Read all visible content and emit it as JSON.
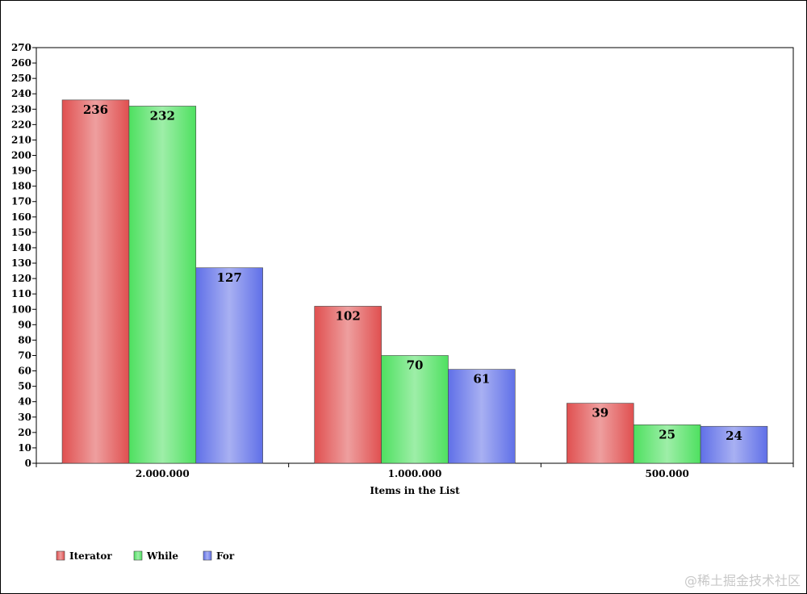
{
  "chart_data": {
    "type": "bar",
    "title": "",
    "xlabel": "Items in the List",
    "ylabel": "",
    "categories": [
      "2.000.000",
      "1.000.000",
      "500.000"
    ],
    "series": [
      {
        "name": "Iterator",
        "color": "#e05050",
        "values": [
          236,
          102,
          39
        ]
      },
      {
        "name": "While",
        "color": "#4ee060",
        "values": [
          232,
          70,
          25
        ]
      },
      {
        "name": "For",
        "color": "#6070e8",
        "values": [
          127,
          61,
          24
        ]
      }
    ],
    "ylim": [
      0,
      270
    ],
    "ytick_step": 10,
    "grid": false,
    "legend_position": "bottom-left"
  },
  "watermark": "@稀土掘金技术社区"
}
